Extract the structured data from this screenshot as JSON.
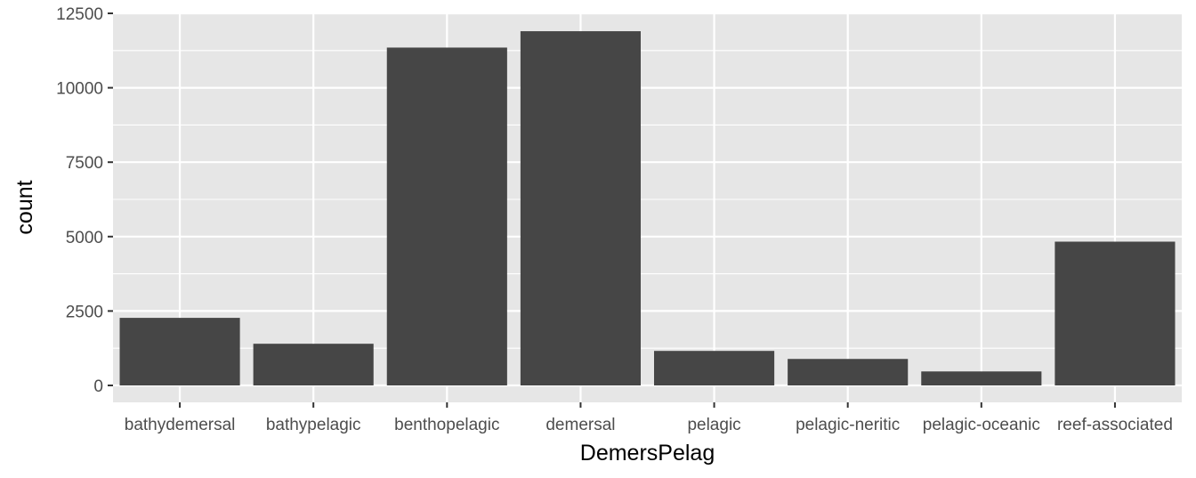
{
  "chart_data": {
    "type": "bar",
    "categories": [
      "bathydemersal",
      "bathypelagic",
      "benthopelagic",
      "demersal",
      "pelagic",
      "pelagic-neritic",
      "pelagic-oceanic",
      "reef-associated"
    ],
    "values": [
      2270,
      1400,
      11350,
      11900,
      1160,
      890,
      470,
      4830
    ],
    "title": "",
    "xlabel": "DemersPelag",
    "ylabel": "count",
    "ylim": [
      0,
      12500
    ],
    "yticks": [
      0,
      2500,
      5000,
      7500,
      10000,
      12500
    ],
    "grid": true,
    "legend": "none",
    "colors": {
      "panel": "#e6e6e6",
      "grid": "#ffffff",
      "bar": "#464646",
      "tick": "#4d4d4d",
      "axis_title": "#000000"
    }
  }
}
